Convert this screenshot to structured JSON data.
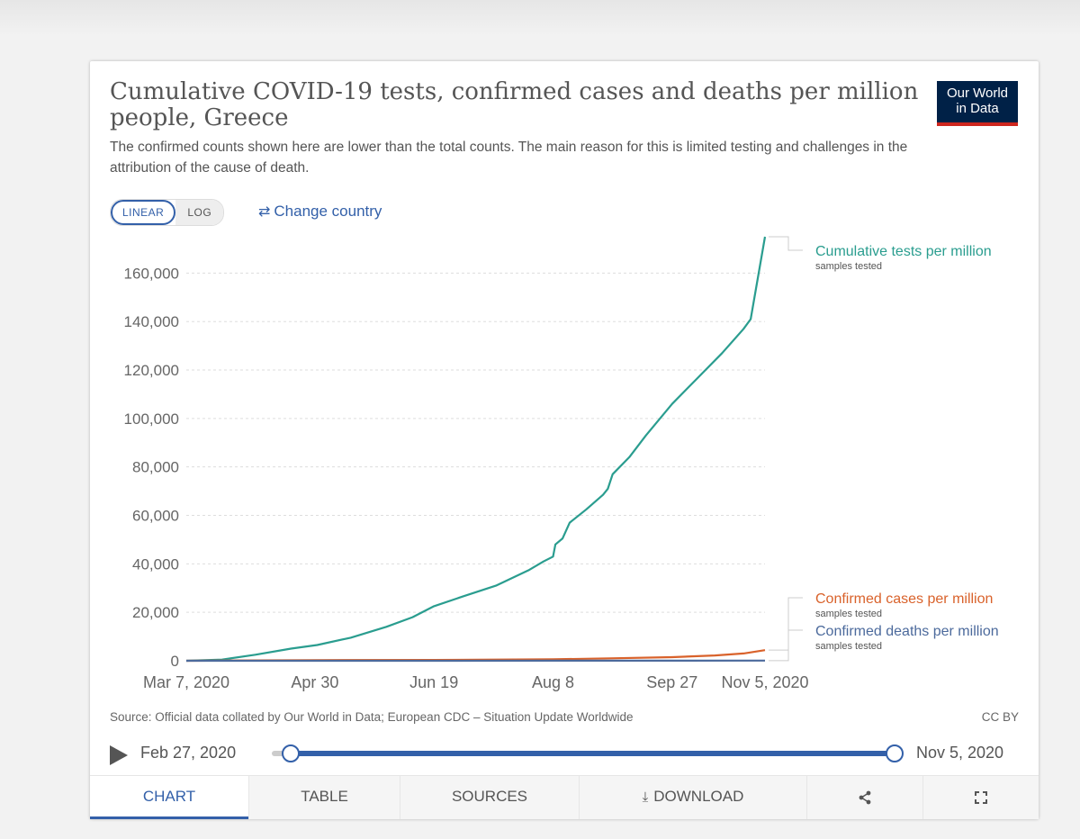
{
  "header": {
    "title": "Cumulative COVID-19 tests, confirmed cases and deaths per million people, Greece",
    "subtitle": "The confirmed counts shown here are lower than the total counts. The main reason for this is limited testing and challenges in the attribution of the cause of death.",
    "logo_line1": "Our World",
    "logo_line2": "in Data"
  },
  "controls": {
    "linear_label": "LINEAR",
    "log_label": "LOG",
    "active_scale": "linear",
    "change_country_label": "Change country",
    "change_country_icon": "swap-arrows-icon"
  },
  "footer": {
    "source": "Source: Official data collated by Our World in Data; European CDC – Situation Update Worldwide",
    "license": "CC BY"
  },
  "timeline": {
    "start_label": "Feb 27, 2020",
    "end_label": "Nov 5, 2020",
    "start_fraction": 0.03,
    "end_fraction": 1.0
  },
  "tabs": [
    {
      "label": "CHART",
      "active": true
    },
    {
      "label": "TABLE",
      "active": false
    },
    {
      "label": "SOURCES",
      "active": false
    },
    {
      "label": "DOWNLOAD",
      "active": false,
      "icon": "download-icon"
    },
    {
      "label": "",
      "active": false,
      "icon": "share-icon"
    },
    {
      "label": "",
      "active": false,
      "icon": "fullscreen-icon"
    }
  ],
  "chart_data": {
    "type": "line",
    "title": "Cumulative COVID-19 tests, confirmed cases and deaths per million people, Greece",
    "x_ticks": [
      "Mar 7, 2020",
      "Apr 30",
      "Jun 19",
      "Aug 8",
      "Sep 27",
      "Nov 5, 2020"
    ],
    "x_range": [
      "Mar 7, 2020",
      "Nov 5, 2020"
    ],
    "y_ticks": [
      0,
      20000,
      40000,
      60000,
      80000,
      100000,
      120000,
      140000,
      160000
    ],
    "y_tick_labels": [
      "0",
      "20,000",
      "40,000",
      "60,000",
      "80,000",
      "100,000",
      "120,000",
      "140,000",
      "160,000"
    ],
    "ylim": [
      0,
      175000
    ],
    "grid": true,
    "legend_placement": "right, at line ends",
    "series": [
      {
        "name": "Cumulative tests per million",
        "sublabel": "samples tested",
        "color": "#2a9d8f",
        "points": [
          [
            "Mar 7",
            0
          ],
          [
            "Mar 22",
            500
          ],
          [
            "Apr 5",
            2500
          ],
          [
            "Apr 20",
            5000
          ],
          [
            "May 1",
            6500
          ],
          [
            "May 15",
            9500
          ],
          [
            "May 30",
            14000
          ],
          [
            "Jun 10",
            18000
          ],
          [
            "Jun 19",
            22500
          ],
          [
            "Jul 1",
            26500
          ],
          [
            "Jul 15",
            31000
          ],
          [
            "Jul 29",
            37500
          ],
          [
            "Aug 4",
            41000
          ],
          [
            "Aug 8",
            43000
          ],
          [
            "Aug 9",
            48000
          ],
          [
            "Aug 12",
            50500
          ],
          [
            "Aug 15",
            57000
          ],
          [
            "Aug 22",
            62500
          ],
          [
            "Aug 29",
            68500
          ],
          [
            "Aug 31",
            71000
          ],
          [
            "Sep 2",
            77000
          ],
          [
            "Sep 9",
            84000
          ],
          [
            "Sep 16",
            93000
          ],
          [
            "Sep 27",
            106000
          ],
          [
            "Oct 8",
            117000
          ],
          [
            "Oct 18",
            127000
          ],
          [
            "Oct 27",
            137000
          ],
          [
            "Oct 30",
            141000
          ],
          [
            "Nov 5",
            175000
          ]
        ]
      },
      {
        "name": "Confirmed cases per million",
        "sublabel": "samples tested",
        "color": "#d9622b",
        "points": [
          [
            "Mar 7",
            0
          ],
          [
            "Apr 30",
            250
          ],
          [
            "Jun 19",
            320
          ],
          [
            "Aug 8",
            600
          ],
          [
            "Sep 1",
            1000
          ],
          [
            "Sep 27",
            1500
          ],
          [
            "Oct 15",
            2200
          ],
          [
            "Oct 27",
            3000
          ],
          [
            "Nov 5",
            4400
          ]
        ]
      },
      {
        "name": "Confirmed deaths per million",
        "sublabel": "samples tested",
        "color": "#4c6a9c",
        "points": [
          [
            "Mar 7",
            0
          ],
          [
            "Apr 30",
            14
          ],
          [
            "Jun 19",
            18
          ],
          [
            "Aug 8",
            20
          ],
          [
            "Sep 27",
            38
          ],
          [
            "Nov 5",
            65
          ]
        ]
      }
    ]
  }
}
